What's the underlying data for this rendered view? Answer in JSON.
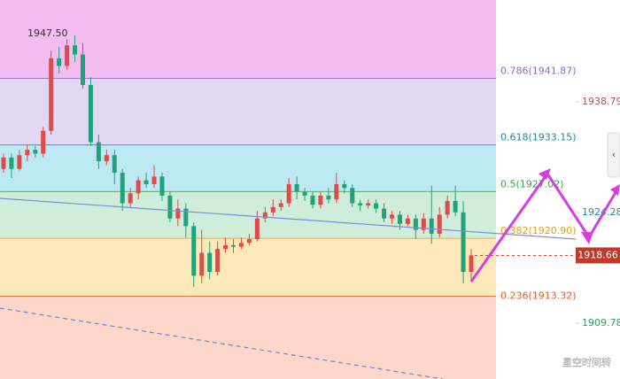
{
  "chart_data": {
    "type": "candlestick",
    "ylim": [
      1902.46,
      1952.14
    ],
    "yticks": [
      {
        "value": 1938.79,
        "label": "1938.79",
        "color": "#c0504d"
      },
      {
        "value": 1924.28,
        "label": "1924.28",
        "color": "#1f8f88"
      },
      {
        "value": 1909.78,
        "label": "1909.78",
        "color": "#2e9e5b"
      }
    ],
    "up_color": "#e04a4a",
    "down_color": "#1fa37a",
    "open": [
      1930.0,
      1931.5,
      1930.0,
      1931.8,
      1932.5,
      1932.0,
      1935.0,
      1944.5,
      1943.5,
      1946.2,
      1945.0,
      1941.0,
      1933.5,
      1931.0,
      1931.8,
      1929.5,
      1925.5,
      1926.8,
      1928.5,
      1928.0,
      1929.0,
      1926.5,
      1923.5,
      1924.8,
      1922.5,
      1916.0,
      1919.0,
      1916.5,
      1919.5,
      1920.0,
      1919.8,
      1920.3,
      1920.8,
      1923.5,
      1924.3,
      1925.0,
      1925.5,
      1928.0,
      1927.0,
      1926.5,
      1925.3,
      1926.5,
      1926.0,
      1928.0,
      1927.5,
      1925.5,
      1925.2,
      1925.5,
      1924.8,
      1923.5,
      1924.0,
      1922.8,
      1923.5,
      1922.0,
      1923.5,
      1921.5,
      1924.0,
      1925.8,
      1924.3,
      1916.5
    ],
    "high": [
      1932.0,
      1932.0,
      1932.5,
      1933.2,
      1933.0,
      1935.5,
      1945.5,
      1946.0,
      1947.0,
      1947.5,
      1946.5,
      1942.0,
      1934.5,
      1932.5,
      1932.5,
      1930.0,
      1927.5,
      1929.0,
      1929.5,
      1930.5,
      1929.5,
      1927.0,
      1926.0,
      1925.5,
      1923.0,
      1922.0,
      1920.5,
      1920.5,
      1921.0,
      1920.8,
      1921.0,
      1921.5,
      1924.5,
      1925.0,
      1926.0,
      1926.0,
      1928.8,
      1929.0,
      1927.5,
      1927.0,
      1927.0,
      1927.5,
      1929.5,
      1928.5,
      1928.0,
      1926.0,
      1926.0,
      1926.0,
      1925.5,
      1924.5,
      1924.5,
      1924.0,
      1924.0,
      1924.2,
      1927.8,
      1925.0,
      1926.5,
      1927.8,
      1925.8,
      1919.5
    ],
    "low": [
      1929.5,
      1928.8,
      1929.8,
      1931.0,
      1931.5,
      1931.5,
      1934.5,
      1942.5,
      1943.0,
      1944.0,
      1940.5,
      1933.0,
      1930.0,
      1930.5,
      1928.0,
      1924.5,
      1925.0,
      1926.0,
      1927.5,
      1927.5,
      1925.8,
      1923.0,
      1922.5,
      1921.0,
      1914.5,
      1915.0,
      1915.5,
      1916.0,
      1919.0,
      1919.0,
      1919.5,
      1920.0,
      1920.5,
      1923.0,
      1923.8,
      1924.5,
      1925.0,
      1926.0,
      1925.8,
      1924.8,
      1924.8,
      1925.5,
      1925.5,
      1926.8,
      1925.0,
      1924.5,
      1924.8,
      1924.2,
      1923.0,
      1922.8,
      1922.0,
      1922.5,
      1920.8,
      1921.5,
      1920.2,
      1921.0,
      1923.5,
      1923.8,
      1915.0,
      1915.5
    ],
    "close": [
      1931.5,
      1930.0,
      1931.8,
      1932.5,
      1932.0,
      1935.0,
      1944.5,
      1943.5,
      1946.2,
      1945.0,
      1941.0,
      1933.5,
      1931.0,
      1931.8,
      1929.5,
      1925.5,
      1926.8,
      1928.5,
      1928.0,
      1929.0,
      1926.5,
      1923.5,
      1924.8,
      1922.5,
      1916.0,
      1919.0,
      1916.5,
      1919.5,
      1920.0,
      1919.8,
      1920.3,
      1920.8,
      1923.5,
      1924.3,
      1925.0,
      1925.5,
      1928.0,
      1927.0,
      1926.5,
      1925.3,
      1926.5,
      1926.0,
      1928.0,
      1927.5,
      1925.5,
      1925.2,
      1925.5,
      1924.8,
      1923.5,
      1924.0,
      1922.8,
      1923.5,
      1922.0,
      1923.5,
      1921.5,
      1924.0,
      1925.8,
      1924.3,
      1916.5,
      1918.66
    ],
    "high_label": {
      "value": 1947.5,
      "label": "1947.50"
    },
    "top_zone_color": "#f3bdf1",
    "fib_levels": [
      {
        "value": 1941.87,
        "label": "0.786(1941.87)",
        "color": "#8c6cc4",
        "zone_color": "#e2d8f6"
      },
      {
        "value": 1933.15,
        "label": "0.618(1933.15)",
        "color": "#1e88a8",
        "zone_color": "#bde9f4"
      },
      {
        "value": 1927.02,
        "label": "0.5(1927.02)",
        "color": "#3f9e4f",
        "zone_color": "#d0ecda"
      },
      {
        "value": 1920.9,
        "label": "0.382(1920.90)",
        "color": "#e0a020",
        "zone_color": "#fde8b8"
      },
      {
        "value": 1913.32,
        "label": "0.236(1913.32)",
        "color": "#e0602e",
        "zone_color": "#fdd6ca"
      }
    ],
    "last_price_color": "#c0392b",
    "watermark": "星空时间转"
  }
}
